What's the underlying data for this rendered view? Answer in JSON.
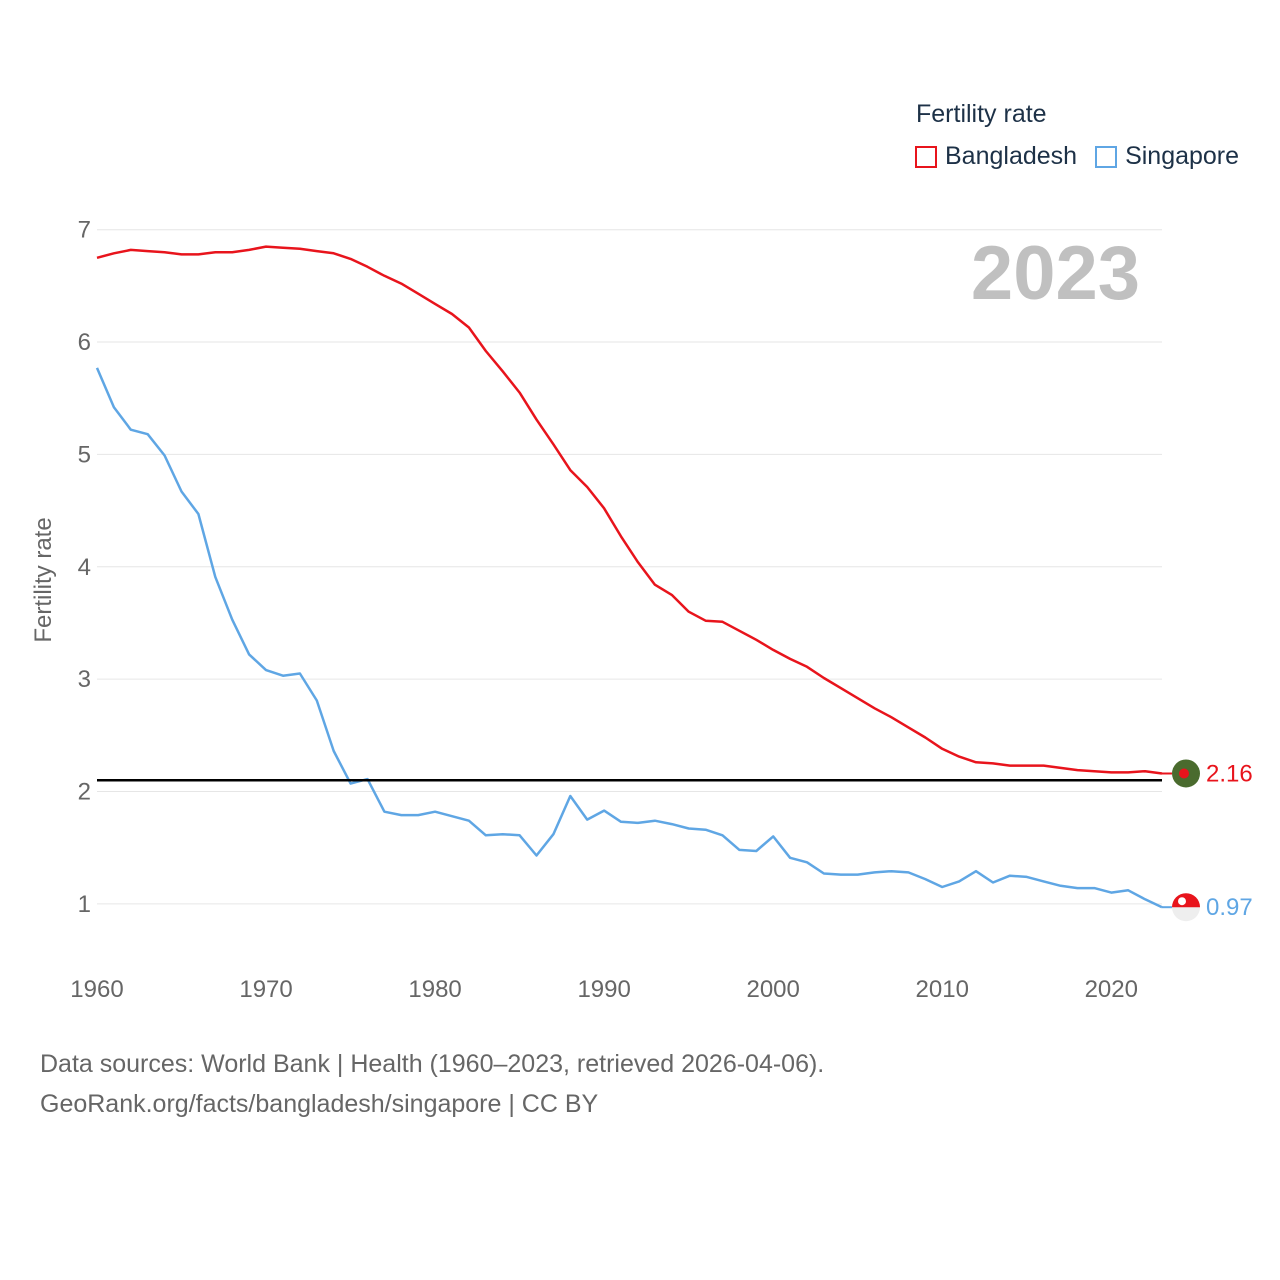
{
  "chart_data": {
    "type": "line",
    "title": "Fertility rate",
    "year_label": "2023",
    "ylabel": "Fertility rate",
    "xlabel": "",
    "xlim": [
      1960,
      2023
    ],
    "ylim": [
      0.5,
      7.3
    ],
    "x_ticks": [
      1960,
      1970,
      1980,
      1990,
      2000,
      2010,
      2020
    ],
    "y_ticks": [
      1,
      2,
      3,
      4,
      5,
      6,
      7
    ],
    "reference_line": 2.1,
    "x": [
      1960,
      1961,
      1962,
      1963,
      1964,
      1965,
      1966,
      1967,
      1968,
      1969,
      1970,
      1971,
      1972,
      1973,
      1974,
      1975,
      1976,
      1977,
      1978,
      1979,
      1980,
      1981,
      1982,
      1983,
      1984,
      1985,
      1986,
      1987,
      1988,
      1989,
      1990,
      1991,
      1992,
      1993,
      1994,
      1995,
      1996,
      1997,
      1998,
      1999,
      2000,
      2001,
      2002,
      2003,
      2004,
      2005,
      2006,
      2007,
      2008,
      2009,
      2010,
      2011,
      2012,
      2013,
      2014,
      2015,
      2016,
      2017,
      2018,
      2019,
      2020,
      2021,
      2022,
      2023
    ],
    "series": [
      {
        "name": "Bangladesh",
        "color": "#e8141c",
        "end_label": "2.16",
        "marker_color": "#4a6b2e",
        "marker_inner_color": "#e8141c",
        "values": [
          6.75,
          6.79,
          6.82,
          6.81,
          6.8,
          6.78,
          6.78,
          6.8,
          6.8,
          6.82,
          6.85,
          6.84,
          6.83,
          6.81,
          6.79,
          6.74,
          6.67,
          6.59,
          6.52,
          6.43,
          6.34,
          6.25,
          6.13,
          5.92,
          5.74,
          5.55,
          5.31,
          5.09,
          4.86,
          4.71,
          4.52,
          4.27,
          4.04,
          3.84,
          3.75,
          3.6,
          3.52,
          3.51,
          3.43,
          3.35,
          3.26,
          3.18,
          3.11,
          3.01,
          2.92,
          2.83,
          2.74,
          2.66,
          2.57,
          2.48,
          2.38,
          2.31,
          2.26,
          2.25,
          2.23,
          2.23,
          2.23,
          2.21,
          2.19,
          2.18,
          2.17,
          2.17,
          2.18,
          2.16
        ]
      },
      {
        "name": "Singapore",
        "color": "#5fa6e4",
        "end_label": "0.97",
        "marker_color": "#e8141c",
        "marker_inner_color": "#eeeeee",
        "values": [
          5.77,
          5.42,
          5.22,
          5.18,
          4.99,
          4.67,
          4.47,
          3.91,
          3.53,
          3.22,
          3.08,
          3.03,
          3.05,
          2.81,
          2.36,
          2.07,
          2.11,
          1.82,
          1.79,
          1.79,
          1.82,
          1.78,
          1.74,
          1.61,
          1.62,
          1.61,
          1.43,
          1.62,
          1.96,
          1.75,
          1.83,
          1.73,
          1.72,
          1.74,
          1.71,
          1.67,
          1.66,
          1.61,
          1.48,
          1.47,
          1.6,
          1.41,
          1.37,
          1.27,
          1.26,
          1.26,
          1.28,
          1.29,
          1.28,
          1.22,
          1.15,
          1.2,
          1.29,
          1.19,
          1.25,
          1.24,
          1.2,
          1.16,
          1.14,
          1.14,
          1.1,
          1.12,
          1.04,
          0.97
        ]
      }
    ]
  },
  "legend": {
    "title": "Fertility rate",
    "items": [
      {
        "label": "Bangladesh",
        "color": "#e8141c"
      },
      {
        "label": "Singapore",
        "color": "#5fa6e4"
      }
    ]
  },
  "footer": {
    "line1": "Data sources: World Bank | Health (1960–2023, retrieved 2026-04-06).",
    "line2": "GeoRank.org/facts/bangladesh/singapore | CC BY"
  }
}
